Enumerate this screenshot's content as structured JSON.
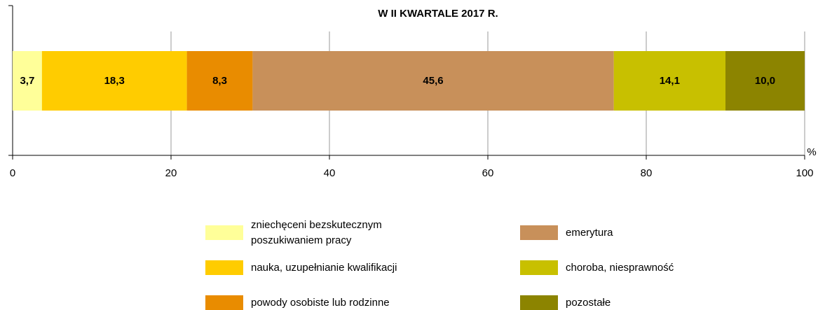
{
  "chart_data": {
    "type": "stacked_bar_horizontal",
    "title": "W II KWARTALE 2017 R.",
    "x_label": "%",
    "categories": [
      null
    ],
    "series": [
      {
        "name": "zniechęceni bezskutecznym poszukiwaniem pracy",
        "color": "#FFFF99",
        "values": [
          3.7
        ],
        "value_labels": [
          "3,7"
        ]
      },
      {
        "name": "nauka, uzupełnianie kwalifikacji",
        "color": "#FFCC00",
        "values": [
          18.3
        ],
        "value_labels": [
          "18,3"
        ]
      },
      {
        "name": "powody osobiste lub rodzinne",
        "color": "#E98C00",
        "values": [
          8.3
        ],
        "value_labels": [
          "8,3"
        ]
      },
      {
        "name": "emerytura",
        "color": "#C8905A",
        "values": [
          45.6
        ],
        "value_labels": [
          "45,6"
        ]
      },
      {
        "name": "choroba, niesprawność",
        "color": "#C8C000",
        "values": [
          14.1
        ],
        "value_labels": [
          "14,1"
        ]
      },
      {
        "name": "pozostałe",
        "color": "#8C8400",
        "values": [
          10.0
        ],
        "value_labels": [
          "10,0"
        ]
      }
    ],
    "xlim": [
      0,
      100
    ],
    "xticks": [
      0,
      20,
      40,
      60,
      80,
      100
    ],
    "grid": true
  }
}
